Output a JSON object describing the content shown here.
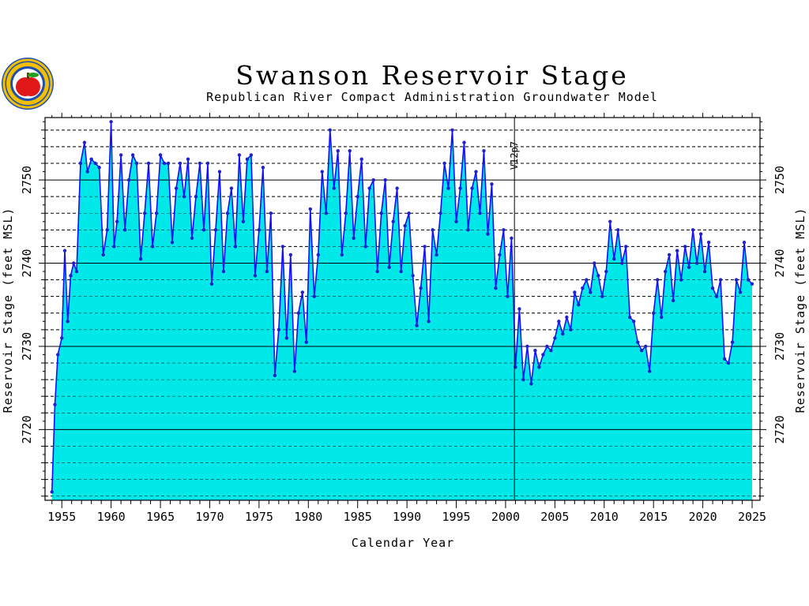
{
  "chart_data": {
    "type": "area",
    "title": "Swanson Reservoir Stage",
    "subtitle": "Republican River Compact Administration Groundwater Model",
    "xlabel": "Calendar Year",
    "ylabel_left": "Reservoir Stage (feet MSL)",
    "ylabel_right": "Reservoir Stage (feet MSL)",
    "xlim": [
      1953.3,
      2025.8
    ],
    "ylim": [
      2711.5,
      2757.5
    ],
    "x_ticks": [
      1955,
      1960,
      1965,
      1970,
      1975,
      1980,
      1985,
      1990,
      1995,
      2000,
      2005,
      2010,
      2015,
      2020,
      2025
    ],
    "y_ticks": [
      2720,
      2730,
      2740,
      2750
    ],
    "annotation": {
      "text": "V12p7",
      "x": 2000.9
    },
    "colors": {
      "fill": "#00e8e8",
      "line": "#1010ff",
      "marker": "#2020cc"
    },
    "grid": "on",
    "series": [
      {
        "x": [
          1954.0,
          1954.3,
          1954.6,
          1955.0,
          1955.3,
          1955.6,
          1955.9,
          1956.2,
          1956.5,
          1956.9,
          1957.3,
          1957.6,
          1958.0,
          1958.4,
          1958.8,
          1959.2,
          1959.6,
          1960.0,
          1960.3,
          1960.6,
          1961.0,
          1961.4,
          1961.8,
          1962.2,
          1962.6,
          1963.0,
          1963.4,
          1963.8,
          1964.2,
          1964.6,
          1965.0,
          1965.4,
          1965.8,
          1966.2,
          1966.6,
          1967.0,
          1967.4,
          1967.8,
          1968.2,
          1968.6,
          1969.0,
          1969.4,
          1969.8,
          1970.2,
          1970.6,
          1971.0,
          1971.4,
          1971.8,
          1972.2,
          1972.6,
          1973.0,
          1973.4,
          1973.8,
          1974.2,
          1974.6,
          1975.0,
          1975.4,
          1975.8,
          1976.2,
          1976.6,
          1977.0,
          1977.4,
          1977.8,
          1978.2,
          1978.6,
          1979.0,
          1979.4,
          1979.8,
          1980.2,
          1980.6,
          1981.0,
          1981.4,
          1981.8,
          1982.2,
          1982.6,
          1983.0,
          1983.4,
          1983.8,
          1984.2,
          1984.6,
          1985.0,
          1985.4,
          1985.8,
          1986.2,
          1986.6,
          1987.0,
          1987.4,
          1987.8,
          1988.2,
          1988.6,
          1989.0,
          1989.4,
          1989.8,
          1990.2,
          1990.6,
          1991.0,
          1991.4,
          1991.8,
          1992.2,
          1992.6,
          1993.0,
          1993.4,
          1993.8,
          1994.2,
          1994.6,
          1995.0,
          1995.4,
          1995.8,
          1996.2,
          1996.6,
          1997.0,
          1997.4,
          1997.8,
          1998.2,
          1998.6,
          1999.0,
          1999.4,
          1999.8,
          2000.2,
          2000.6,
          2001.0,
          2001.4,
          2001.8,
          2002.2,
          2002.6,
          2003.0,
          2003.4,
          2003.8,
          2004.2,
          2004.6,
          2005.0,
          2005.4,
          2005.8,
          2006.2,
          2006.6,
          2007.0,
          2007.4,
          2007.8,
          2008.2,
          2008.6,
          2009.0,
          2009.4,
          2009.8,
          2010.2,
          2010.6,
          2011.0,
          2011.4,
          2011.8,
          2012.2,
          2012.6,
          2013.0,
          2013.4,
          2013.8,
          2014.2,
          2014.6,
          2015.0,
          2015.4,
          2015.8,
          2016.2,
          2016.6,
          2017.0,
          2017.4,
          2017.8,
          2018.2,
          2018.6,
          2019.0,
          2019.4,
          2019.8,
          2020.2,
          2020.6,
          2021.0,
          2021.4,
          2021.8,
          2022.2,
          2022.6,
          2023.0,
          2023.4,
          2023.8,
          2024.2,
          2024.6,
          2025.0
        ],
        "y": [
          2712.5,
          2723.0,
          2729.0,
          2731.0,
          2741.5,
          2733.0,
          2738.5,
          2740.0,
          2739.0,
          2752.0,
          2754.5,
          2751.0,
          2752.5,
          2752.0,
          2751.5,
          2741.0,
          2744.0,
          2757.0,
          2742.0,
          2745.0,
          2753.0,
          2744.0,
          2750.0,
          2753.0,
          2752.0,
          2740.5,
          2746.0,
          2752.0,
          2742.0,
          2746.0,
          2753.0,
          2752.0,
          2752.0,
          2742.5,
          2749.0,
          2752.0,
          2748.0,
          2752.5,
          2743.0,
          2748.0,
          2752.0,
          2744.0,
          2752.0,
          2737.5,
          2744.0,
          2751.0,
          2739.0,
          2746.0,
          2749.0,
          2742.0,
          2753.0,
          2745.0,
          2752.5,
          2753.0,
          2738.5,
          2744.0,
          2751.5,
          2739.0,
          2746.0,
          2726.5,
          2732.0,
          2742.0,
          2731.0,
          2741.0,
          2727.0,
          2734.0,
          2736.5,
          2730.5,
          2746.5,
          2736.0,
          2741.0,
          2751.0,
          2746.0,
          2756.0,
          2749.0,
          2753.5,
          2741.0,
          2746.0,
          2753.5,
          2743.0,
          2748.0,
          2752.5,
          2742.0,
          2749.0,
          2750.0,
          2739.0,
          2746.0,
          2750.0,
          2739.5,
          2745.0,
          2749.0,
          2739.0,
          2744.5,
          2746.0,
          2738.5,
          2732.5,
          2737.0,
          2742.0,
          2733.0,
          2744.0,
          2741.0,
          2746.0,
          2752.0,
          2749.0,
          2756.0,
          2745.0,
          2749.0,
          2754.5,
          2744.0,
          2749.0,
          2751.0,
          2746.0,
          2753.5,
          2743.5,
          2749.5,
          2737.0,
          2741.0,
          2744.0,
          2736.0,
          2743.0,
          2727.5,
          2734.5,
          2726.0,
          2730.0,
          2725.5,
          2729.5,
          2727.5,
          2729.0,
          2730.0,
          2729.5,
          2731.0,
          2733.0,
          2731.5,
          2733.5,
          2732.0,
          2736.5,
          2735.0,
          2737.0,
          2738.0,
          2736.5,
          2740.0,
          2738.5,
          2736.0,
          2739.0,
          2745.0,
          2740.5,
          2744.0,
          2740.0,
          2742.0,
          2733.5,
          2733.0,
          2730.5,
          2729.5,
          2730.0,
          2727.0,
          2734.0,
          2738.0,
          2733.5,
          2739.0,
          2741.0,
          2735.5,
          2741.5,
          2738.0,
          2742.0,
          2739.5,
          2744.0,
          2740.0,
          2743.5,
          2739.0,
          2742.5,
          2737.0,
          2736.0,
          2738.0,
          2728.5,
          2728.0,
          2730.5,
          2738.0,
          2736.5,
          2742.5,
          2738.0,
          2737.5
        ]
      }
    ]
  }
}
